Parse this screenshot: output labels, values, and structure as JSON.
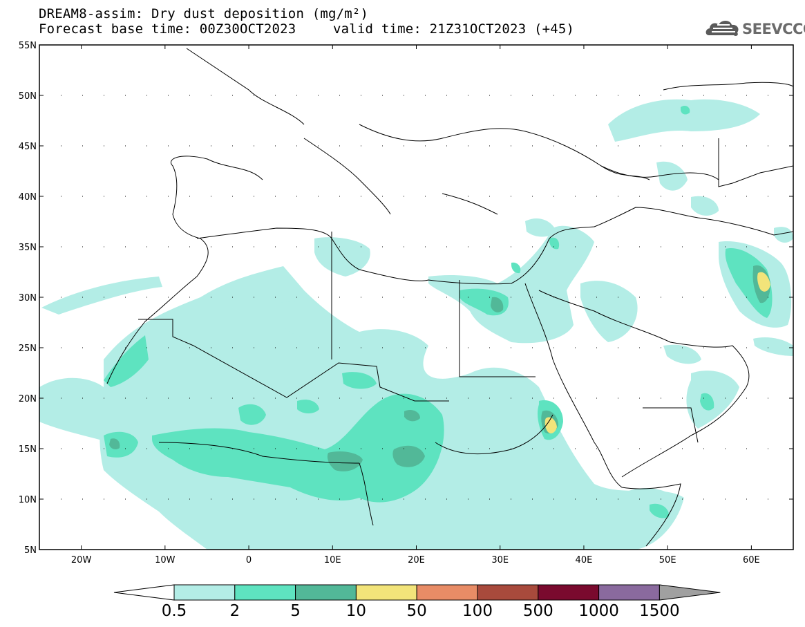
{
  "title": {
    "line1": "DREAM8-assim: Dry dust deposition (mg/m²)",
    "line2_left": "Forecast base time: 00Z30OCT2023",
    "line2_right": "valid time: 21Z31OCT2023 (+45)"
  },
  "logo": {
    "text": "SEEVCCC",
    "icon": "cloud-logo-icon"
  },
  "axes": {
    "lat_labels": [
      "55N",
      "50N",
      "45N",
      "40N",
      "35N",
      "30N",
      "25N",
      "20N",
      "15N",
      "10N",
      "5N"
    ],
    "lon_labels": [
      "20W",
      "10W",
      "0",
      "10E",
      "20E",
      "30E",
      "40E",
      "50E",
      "60E"
    ],
    "lat_range": [
      5,
      55
    ],
    "lon_range": [
      -25,
      65
    ]
  },
  "colorbar": {
    "labels": [
      "0.5",
      "2",
      "5",
      "10",
      "50",
      "100",
      "500",
      "1000",
      "1500"
    ],
    "colors": [
      "#b3ede6",
      "#5ee3c0",
      "#52b898",
      "#f2e47a",
      "#e88c66",
      "#a84a3c",
      "#7a0a2e",
      "#8a6a9e",
      "#a0a0a0"
    ]
  },
  "chart_data": {
    "type": "heatmap",
    "title": "DREAM8-assim: Dry dust deposition (mg/m²)",
    "units": "mg/m²",
    "levels": [
      0.5,
      2,
      5,
      10,
      50,
      100,
      500,
      1000,
      1500
    ],
    "lat_range": [
      5,
      55
    ],
    "lon_range": [
      -25,
      65
    ],
    "base_time": "00Z30OCT2023",
    "valid_time": "21Z31OCT2023",
    "lead_hours": 45
  }
}
